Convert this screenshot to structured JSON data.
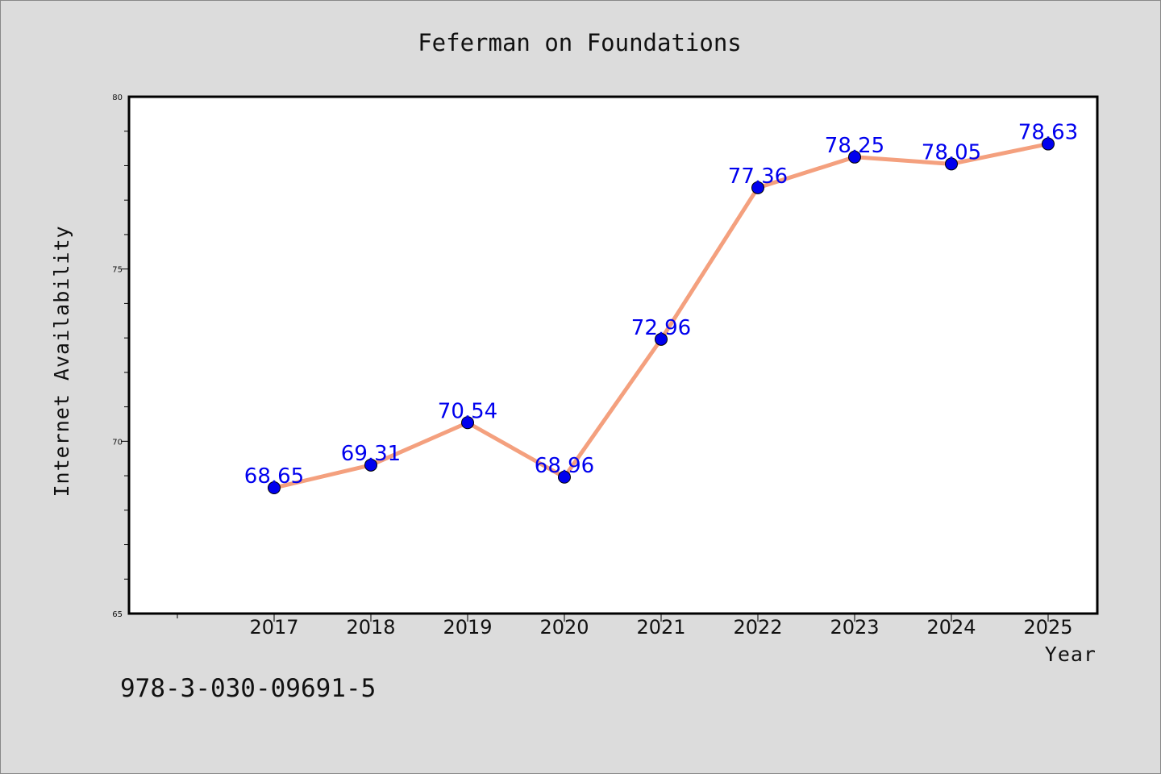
{
  "chart_data": {
    "type": "line",
    "title": "Feferman on Foundations",
    "xlabel": "Year",
    "ylabel": "Internet Availability",
    "categories": [
      "2017",
      "2018",
      "2019",
      "2020",
      "2021",
      "2022",
      "2023",
      "2024",
      "2025"
    ],
    "series": [
      {
        "values": [
          68.65,
          69.31,
          70.54,
          68.96,
          72.96,
          77.36,
          78.25,
          78.05,
          78.63
        ]
      }
    ],
    "data_labels": [
      "68.65",
      "69.31",
      "70.54",
      "68.96",
      "72.96",
      "77.36",
      "78.25",
      "78.05",
      "78.63"
    ],
    "ylim": [
      65,
      80
    ],
    "yticks": [
      65,
      70,
      75,
      80
    ],
    "yticks_labels": [
      "65",
      "70",
      "75",
      "80"
    ],
    "line_color": "#f4a07e",
    "marker_color": "#0000ee",
    "label_color": "#0000ee",
    "grid": false,
    "legend": "none"
  },
  "footnote": "978-3-030-09691-5"
}
